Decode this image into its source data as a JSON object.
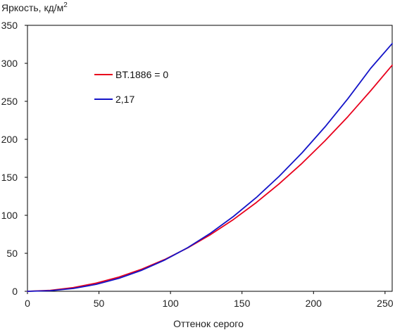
{
  "chart_data": {
    "type": "line",
    "title": "",
    "ylabel": "Яркость, кд/м",
    "ylabel_sup": "2",
    "xlabel": "Оттенок серого",
    "xlim": [
      0,
      255
    ],
    "ylim": [
      0,
      350
    ],
    "xticks": [
      0,
      50,
      100,
      150,
      200,
      250
    ],
    "yticks": [
      0,
      50,
      100,
      150,
      200,
      250,
      300,
      350
    ],
    "grid": false,
    "legend_position": "upper-left-inside",
    "series": [
      {
        "name": "BT.1886 = 0",
        "color": "#e8001c",
        "x": [
          0,
          16,
          32,
          48,
          64,
          80,
          96,
          112,
          128,
          144,
          160,
          176,
          192,
          208,
          224,
          240,
          255
        ],
        "y": [
          0,
          1.2,
          4.8,
          10.8,
          18.8,
          29.2,
          41.9,
          57.1,
          74.6,
          94.5,
          116.8,
          141.5,
          168.5,
          198.0,
          229.8,
          264.0,
          297.5
        ]
      },
      {
        "name": "2,17",
        "color": "#1414c8",
        "x": [
          0,
          16,
          32,
          48,
          64,
          80,
          96,
          112,
          128,
          144,
          160,
          176,
          192,
          208,
          224,
          240,
          255
        ],
        "y": [
          0,
          0.8,
          3.7,
          9.1,
          17.1,
          27.8,
          41.2,
          57.4,
          76.5,
          98.5,
          123.4,
          151.4,
          182.3,
          216.3,
          253.4,
          293.5,
          326.0
        ]
      }
    ]
  }
}
